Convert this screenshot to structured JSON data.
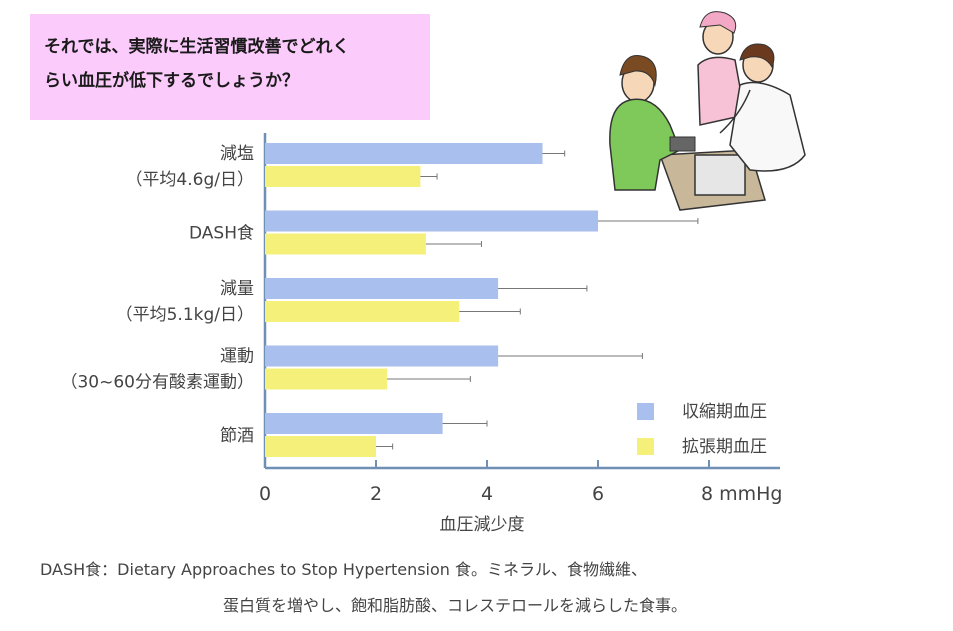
{
  "banner": {
    "line1": "それでは、実際に生活習慣改善でどれく",
    "line2": "らい血圧が低下するでしょうか？"
  },
  "caption": {
    "line1": "DASH食：Dietary Approaches to Stop Hypertension 食。ミネラル、食物繊維、",
    "line2": "蛋白質を増やし、飽和脂肪酸、コレステロールを減らした食事。"
  },
  "illustration": {
    "icon": "nurse-doctor-patient-blood-pressure-illustration"
  },
  "chart_data": {
    "type": "bar",
    "orientation": "horizontal",
    "categories": [
      {
        "line1": "減塩",
        "line2": "（平均4.6g/日）"
      },
      {
        "line1": "DASH食",
        "line2": ""
      },
      {
        "line1": "減量",
        "line2": "（平均5.1kg/日）"
      },
      {
        "line1": "運動",
        "line2": "（30~60分有酸素運動）"
      },
      {
        "line1": "節酒",
        "line2": ""
      }
    ],
    "series": [
      {
        "name": "収縮期血圧",
        "color": "#a9bfee",
        "values": [
          5.0,
          6.0,
          4.2,
          4.2,
          3.2
        ],
        "error": [
          0.4,
          1.8,
          1.6,
          2.6,
          0.8
        ]
      },
      {
        "name": "拡張期血圧",
        "color": "#f5f07a",
        "values": [
          2.8,
          2.9,
          3.5,
          2.2,
          2.0
        ],
        "error": [
          0.3,
          1.0,
          1.1,
          1.5,
          0.3
        ]
      }
    ],
    "x_ticks": [
      "0",
      "2",
      "4",
      "6",
      "8 mmHg"
    ],
    "xlim": [
      0,
      8
    ],
    "xlabel": "血圧減少度",
    "legend_position": "bottom-right"
  }
}
